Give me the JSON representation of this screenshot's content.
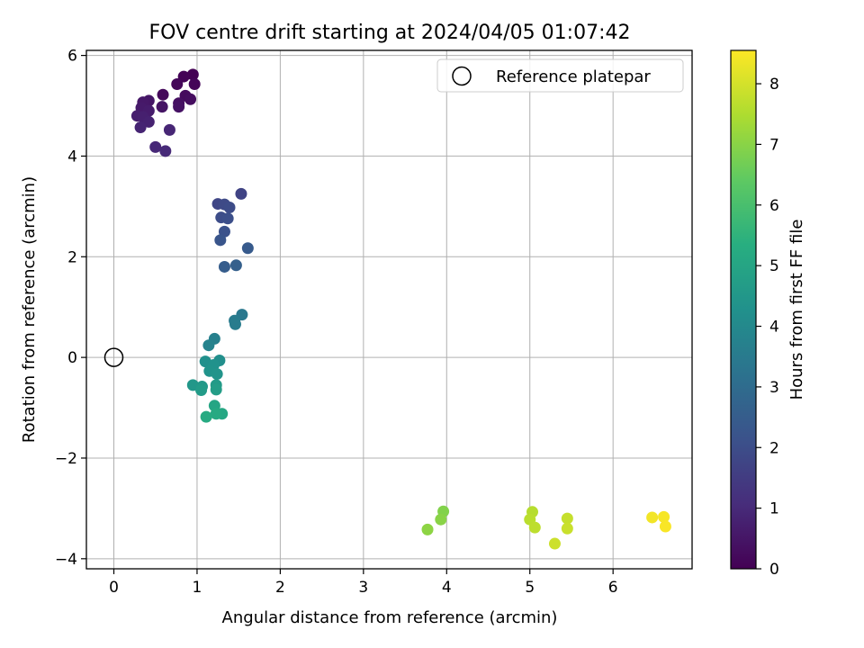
{
  "chart_data": {
    "type": "scatter",
    "title": "FOV centre drift starting at 2024/04/05 01:07:42",
    "xlabel": "Angular distance from reference (arcmin)",
    "ylabel": "Rotation from reference (arcmin)",
    "xlim": [
      -0.33,
      6.95
    ],
    "ylim": [
      -4.2,
      6.1
    ],
    "xticks": [
      0,
      1,
      2,
      3,
      4,
      5,
      6
    ],
    "yticks": [
      -4,
      -2,
      0,
      2,
      4,
      6
    ],
    "xtick_labels": [
      "0",
      "1",
      "2",
      "3",
      "4",
      "5",
      "6"
    ],
    "ytick_labels": [
      "−4",
      "−2",
      "0",
      "2",
      "4",
      "6"
    ],
    "grid": true,
    "legend": {
      "position": "top-right",
      "label": "Reference platepar"
    },
    "reference_point": {
      "x": 0,
      "y": 0
    },
    "colorbar": {
      "label": "Hours from first FF file",
      "colormap": "viridis",
      "range": [
        0,
        8.55
      ],
      "ticks": [
        0,
        1,
        2,
        3,
        4,
        5,
        6,
        7,
        8
      ],
      "tick_labels": [
        "0",
        "1",
        "2",
        "3",
        "4",
        "5",
        "6",
        "7",
        "8"
      ]
    },
    "points": [
      {
        "x": 0.95,
        "y": 5.62,
        "c": 0.0
      },
      {
        "x": 0.84,
        "y": 5.58,
        "c": 0.05
      },
      {
        "x": 0.97,
        "y": 5.43,
        "c": 0.1
      },
      {
        "x": 0.76,
        "y": 5.43,
        "c": 0.15
      },
      {
        "x": 0.59,
        "y": 5.22,
        "c": 0.2
      },
      {
        "x": 0.86,
        "y": 5.2,
        "c": 0.25
      },
      {
        "x": 0.92,
        "y": 5.13,
        "c": 0.3
      },
      {
        "x": 0.78,
        "y": 5.05,
        "c": 0.35
      },
      {
        "x": 0.78,
        "y": 4.98,
        "c": 0.4
      },
      {
        "x": 0.58,
        "y": 4.98,
        "c": 0.45
      },
      {
        "x": 0.42,
        "y": 5.1,
        "c": 0.5
      },
      {
        "x": 0.35,
        "y": 5.07,
        "c": 0.55
      },
      {
        "x": 0.33,
        "y": 4.96,
        "c": 0.6
      },
      {
        "x": 0.42,
        "y": 4.9,
        "c": 0.65
      },
      {
        "x": 0.28,
        "y": 4.8,
        "c": 0.7
      },
      {
        "x": 0.35,
        "y": 4.78,
        "c": 0.75
      },
      {
        "x": 0.42,
        "y": 4.68,
        "c": 0.8
      },
      {
        "x": 0.32,
        "y": 4.57,
        "c": 0.85
      },
      {
        "x": 0.67,
        "y": 4.52,
        "c": 0.9
      },
      {
        "x": 0.5,
        "y": 4.18,
        "c": 0.95
      },
      {
        "x": 0.62,
        "y": 4.1,
        "c": 1.0
      },
      {
        "x": 1.53,
        "y": 3.25,
        "c": 1.7
      },
      {
        "x": 1.25,
        "y": 3.05,
        "c": 1.8
      },
      {
        "x": 1.33,
        "y": 3.04,
        "c": 1.9
      },
      {
        "x": 1.39,
        "y": 2.98,
        "c": 1.95
      },
      {
        "x": 1.29,
        "y": 2.78,
        "c": 2.0
      },
      {
        "x": 1.37,
        "y": 2.76,
        "c": 2.05
      },
      {
        "x": 1.33,
        "y": 2.5,
        "c": 2.15
      },
      {
        "x": 1.28,
        "y": 2.33,
        "c": 2.25
      },
      {
        "x": 1.61,
        "y": 2.17,
        "c": 2.4
      },
      {
        "x": 1.33,
        "y": 1.8,
        "c": 2.5
      },
      {
        "x": 1.47,
        "y": 1.83,
        "c": 2.6
      },
      {
        "x": 1.54,
        "y": 0.85,
        "c": 3.4
      },
      {
        "x": 1.45,
        "y": 0.73,
        "c": 3.5
      },
      {
        "x": 1.46,
        "y": 0.66,
        "c": 3.55
      },
      {
        "x": 1.21,
        "y": 0.37,
        "c": 3.7
      },
      {
        "x": 1.14,
        "y": 0.24,
        "c": 3.8
      },
      {
        "x": 1.27,
        "y": -0.06,
        "c": 4.2
      },
      {
        "x": 1.1,
        "y": -0.08,
        "c": 4.25
      },
      {
        "x": 1.2,
        "y": -0.15,
        "c": 4.3
      },
      {
        "x": 1.15,
        "y": -0.27,
        "c": 4.35
      },
      {
        "x": 1.24,
        "y": -0.33,
        "c": 4.4
      },
      {
        "x": 0.95,
        "y": -0.55,
        "c": 4.5
      },
      {
        "x": 1.06,
        "y": -0.58,
        "c": 4.55
      },
      {
        "x": 1.23,
        "y": -0.55,
        "c": 4.6
      },
      {
        "x": 1.05,
        "y": -0.65,
        "c": 4.65
      },
      {
        "x": 1.23,
        "y": -0.64,
        "c": 4.7
      },
      {
        "x": 1.21,
        "y": -0.96,
        "c": 5.0
      },
      {
        "x": 1.3,
        "y": -1.12,
        "c": 5.1
      },
      {
        "x": 1.23,
        "y": -1.12,
        "c": 5.15
      },
      {
        "x": 1.11,
        "y": -1.18,
        "c": 5.2
      },
      {
        "x": 3.96,
        "y": -3.06,
        "c": 6.9
      },
      {
        "x": 3.93,
        "y": -3.22,
        "c": 7.0
      },
      {
        "x": 3.77,
        "y": -3.42,
        "c": 7.05
      },
      {
        "x": 5.03,
        "y": -3.07,
        "c": 7.6
      },
      {
        "x": 5.0,
        "y": -3.22,
        "c": 7.65
      },
      {
        "x": 5.06,
        "y": -3.38,
        "c": 7.7
      },
      {
        "x": 5.45,
        "y": -3.2,
        "c": 7.8
      },
      {
        "x": 5.45,
        "y": -3.4,
        "c": 7.85
      },
      {
        "x": 5.3,
        "y": -3.7,
        "c": 7.9
      },
      {
        "x": 6.47,
        "y": -3.18,
        "c": 8.4
      },
      {
        "x": 6.61,
        "y": -3.17,
        "c": 8.45
      },
      {
        "x": 6.63,
        "y": -3.36,
        "c": 8.5
      }
    ]
  }
}
